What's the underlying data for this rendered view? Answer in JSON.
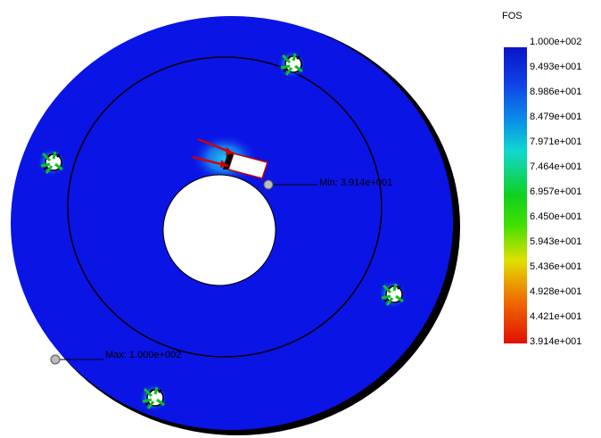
{
  "legend": {
    "title": "FOS",
    "labels": [
      "1.000e+002",
      "9.493e+001",
      "8.986e+001",
      "8.479e+001",
      "7.971e+001",
      "7.464e+001",
      "6.957e+001",
      "6.450e+001",
      "5.943e+001",
      "5.436e+001",
      "4.928e+001",
      "4.421e+001",
      "3.914e+001"
    ]
  },
  "annotations": {
    "min": "Min: 3.914e+001",
    "max": "Max: 1.000e+002"
  }
}
